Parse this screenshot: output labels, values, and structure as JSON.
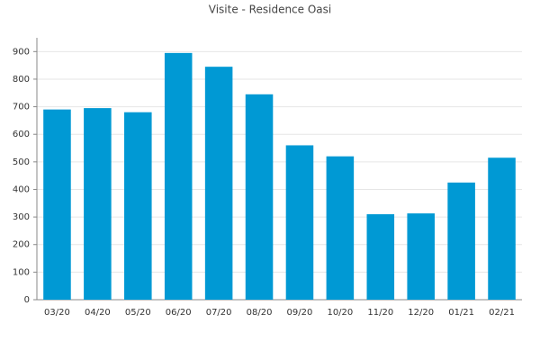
{
  "chart_data": {
    "type": "bar",
    "title": "Visite - Residence Oasi",
    "categories": [
      "03/20",
      "04/20",
      "05/20",
      "06/20",
      "07/20",
      "08/20",
      "09/20",
      "10/20",
      "11/20",
      "12/20",
      "01/21",
      "02/21"
    ],
    "values": [
      690,
      695,
      680,
      895,
      845,
      745,
      560,
      520,
      310,
      313,
      425,
      515
    ],
    "color": "#0099d4",
    "ylim": [
      0,
      950
    ],
    "yticks": [
      0,
      100,
      200,
      300,
      400,
      500,
      600,
      700,
      800,
      900
    ],
    "grid": true
  }
}
